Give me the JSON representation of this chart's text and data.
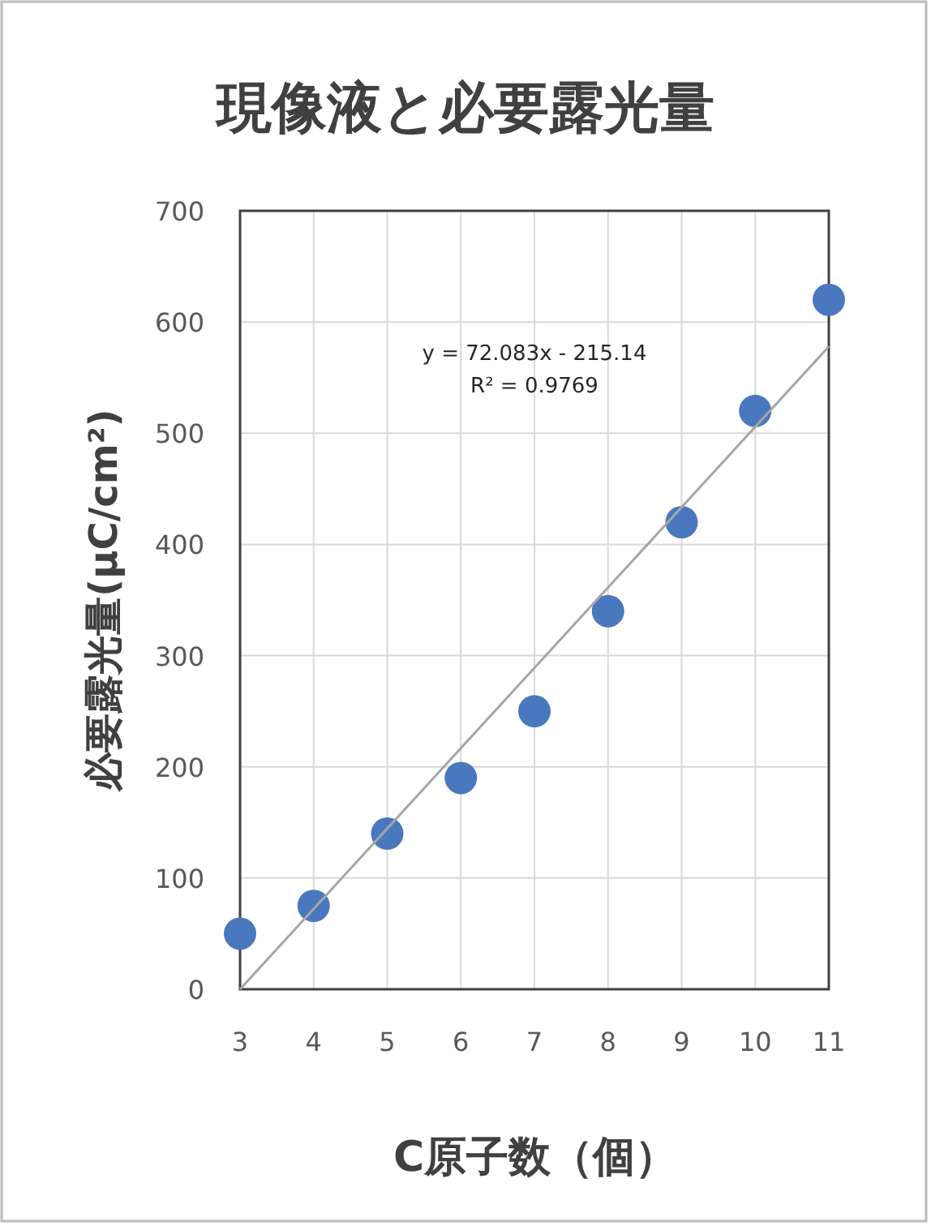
{
  "chart_data": {
    "type": "scatter",
    "title": "現像液と必要露光量",
    "xlabel": "C原子数（個）",
    "ylabel": "必要露光量(μC/cm²)",
    "x": [
      3,
      4,
      5,
      6,
      7,
      8,
      9,
      10,
      11
    ],
    "series": [
      {
        "type": "scatter",
        "marker": "circle",
        "color": "#4a78bf",
        "values": [
          50,
          75,
          140,
          190,
          250,
          340,
          420,
          520,
          620
        ]
      },
      {
        "type": "line",
        "marker": "none",
        "color": "#a6a6a6",
        "x": [
          3,
          11
        ],
        "values": [
          0,
          578
        ]
      }
    ],
    "annotations": [
      "y = 72.083x - 215.14",
      "R² = 0.9769"
    ],
    "xlim": [
      3,
      11
    ],
    "xticks": [
      3,
      4,
      5,
      6,
      7,
      8,
      9,
      10,
      11
    ],
    "ylim": [
      0,
      700
    ],
    "yticks": [
      0,
      100,
      200,
      300,
      400,
      500,
      600,
      700
    ],
    "grid": true,
    "line_style": "solid"
  }
}
